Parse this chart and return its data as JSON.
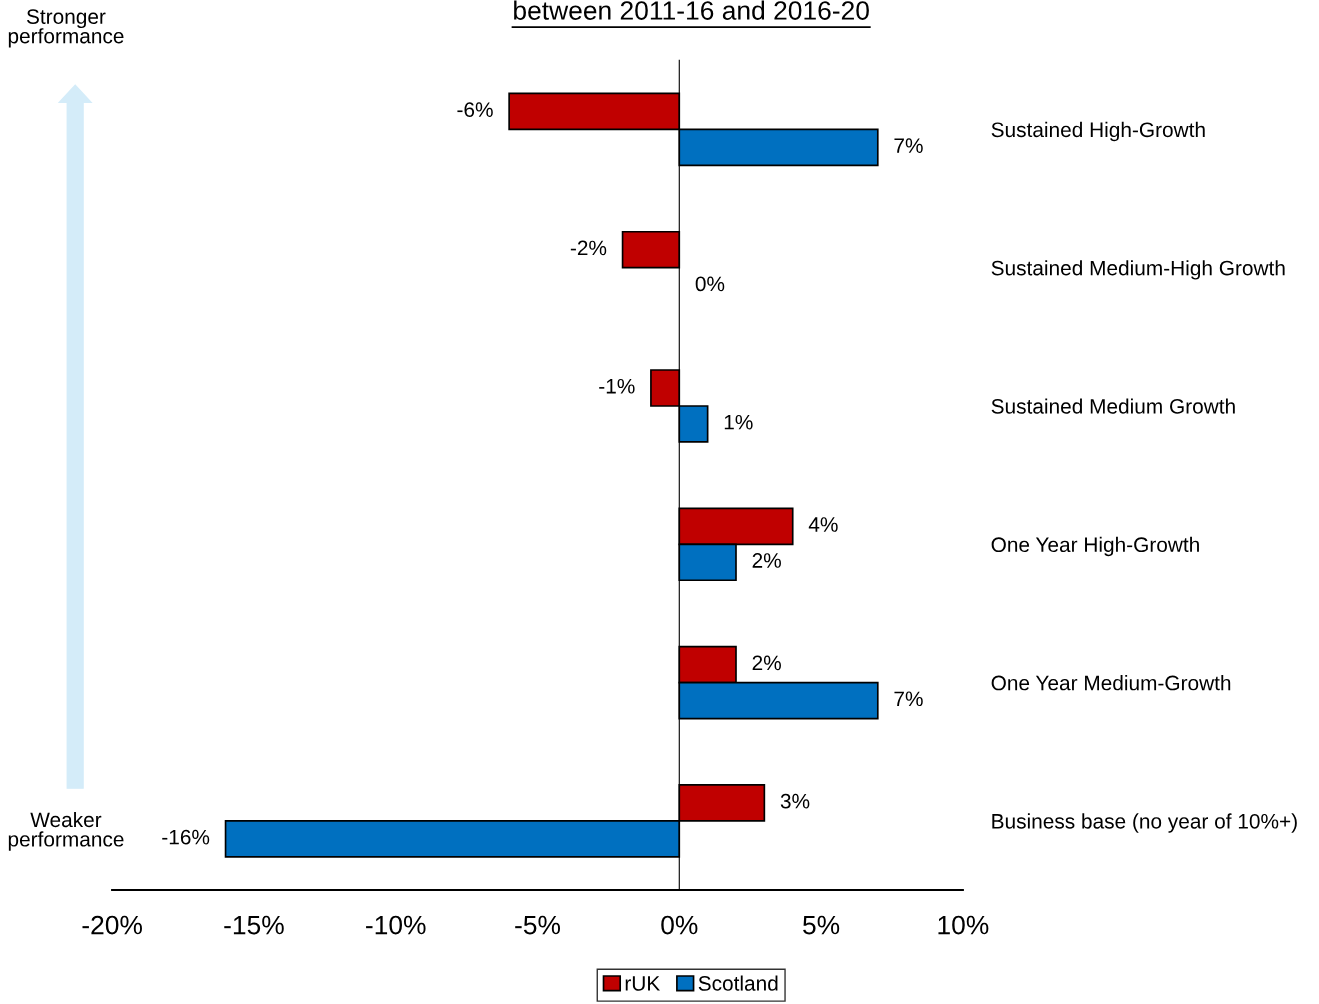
{
  "chart_data": {
    "type": "bar",
    "orientation": "horizontal",
    "title": "between 2011-16 and 2016-20",
    "categories": [
      "Sustained High-Growth",
      "Sustained Medium-High Growth",
      "Sustained Medium Growth",
      "One Year High-Growth",
      "One Year Medium-Growth",
      "Business base (no year of 10%+)"
    ],
    "series": [
      {
        "name": "rUK",
        "color": "#c00000",
        "values": [
          -6,
          -2,
          -1,
          4,
          2,
          3
        ],
        "value_labels": [
          "-6%",
          "-2%",
          "-1%",
          "4%",
          "2%",
          "3%"
        ]
      },
      {
        "name": "Scotland",
        "color": "#0070c0",
        "values": [
          7,
          0,
          1,
          2,
          7,
          -16
        ],
        "value_labels": [
          "7%",
          "0%",
          "1%",
          "2%",
          "7%",
          "-16%"
        ]
      }
    ],
    "xlim": [
      -20,
      10
    ],
    "xticks": [
      {
        "value": -20,
        "label": "-20%"
      },
      {
        "value": -15,
        "label": "-15%"
      },
      {
        "value": -10,
        "label": "-10%"
      },
      {
        "value": -5,
        "label": "-5%"
      },
      {
        "value": 0,
        "label": "0%"
      },
      {
        "value": 5,
        "label": "5%"
      },
      {
        "value": 10,
        "label": "10%"
      }
    ],
    "annotations": [
      "Stronger\nperformance",
      "Weaker\nperformance"
    ],
    "legend": "bottom"
  }
}
